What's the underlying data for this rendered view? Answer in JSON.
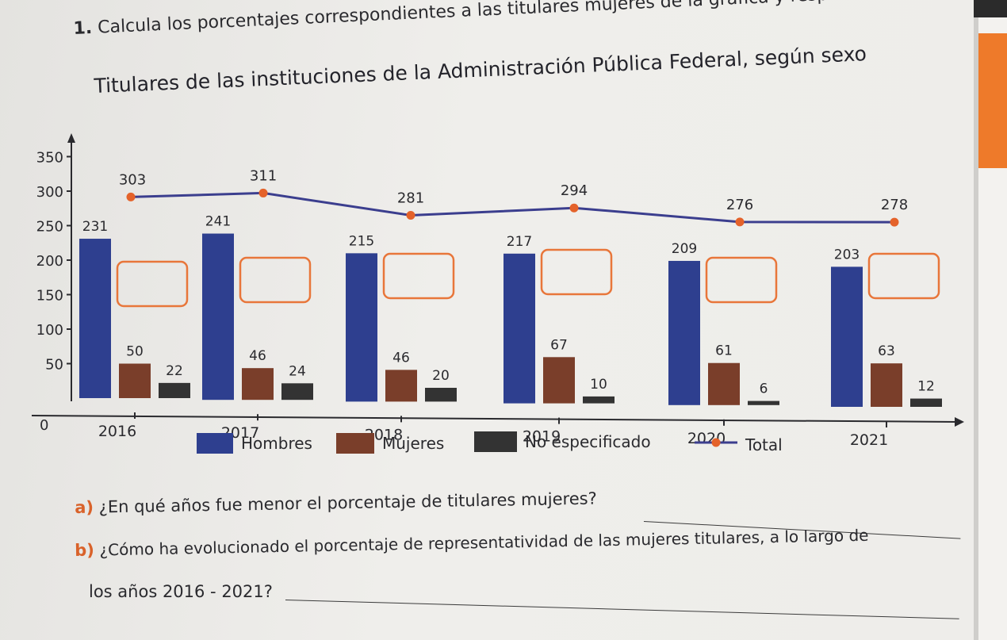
{
  "instruction": {
    "number": "1.",
    "text": "Calcula los porcentajes correspondientes a las titulares mujeres de la gráfica y responde."
  },
  "chart_data": {
    "type": "bar",
    "title": "Titulares de las instituciones de la Administración Pública Federal, según sexo",
    "categories": [
      "2016",
      "2017",
      "2018",
      "2019",
      "2020",
      "2021"
    ],
    "series": [
      {
        "name": "Hombres",
        "color": "#2e3f8f",
        "values": [
          231,
          241,
          215,
          217,
          209,
          203
        ]
      },
      {
        "name": "Mujeres",
        "color": "#7a3e2a",
        "values": [
          50,
          46,
          46,
          67,
          61,
          63
        ]
      },
      {
        "name": "No especificado",
        "color": "#333333",
        "values": [
          22,
          24,
          20,
          10,
          6,
          12
        ]
      },
      {
        "name": "Total",
        "type": "line",
        "color": "#3b3e8e",
        "marker_color": "#e4622a",
        "values": [
          303,
          311,
          281,
          294,
          276,
          278
        ]
      }
    ],
    "yticks": [
      "0",
      "50",
      "100",
      "150",
      "200",
      "250",
      "300",
      "350"
    ],
    "ylim": [
      0,
      350
    ],
    "legend_position": "bottom",
    "answer_box_color": "#e8763a"
  },
  "questions": {
    "a_letter": "a)",
    "a_text": "¿En qué años fue menor el porcentaje de titulares mujeres?",
    "b_letter": "b)",
    "b_text_1": "¿Cómo ha evolucionado el porcentaje de representatividad de las mujeres titulares, a lo largo de",
    "b_text_2": "los años 2016 - 2021?"
  }
}
